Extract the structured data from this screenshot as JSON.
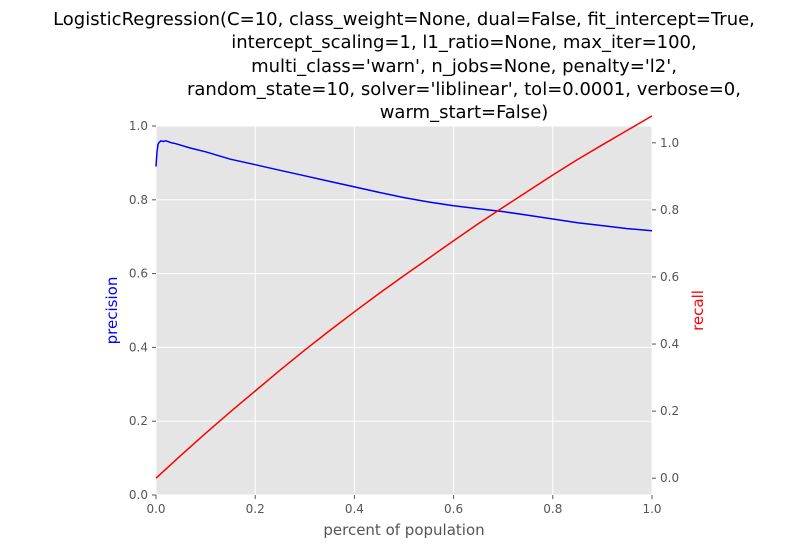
{
  "chart_data": {
    "type": "line",
    "title_lines": [
      "LogisticRegression(C=10, class_weight=None, dual=False, fit_intercept=True,",
      "intercept_scaling=1, l1_ratio=None, max_iter=100,",
      "multi_class='warn', n_jobs=None, penalty='l2',",
      "random_state=10, solver='liblinear', tol=0.0001, verbose=0,",
      "warm_start=False)"
    ],
    "xlabel": "percent of population",
    "ylabel_left": "precision",
    "ylabel_right": "recall",
    "xlim": [
      0,
      1
    ],
    "ylim_left": [
      0,
      1
    ],
    "ylim_right": [
      -0.05,
      1.05
    ],
    "x_ticks": [
      "0.0",
      "0.2",
      "0.4",
      "0.6",
      "0.8",
      "1.0"
    ],
    "y_left_ticks": [
      "0.0",
      "0.2",
      "0.4",
      "0.6",
      "0.8",
      "1.0"
    ],
    "y_right_ticks": [
      "0.0",
      "0.2",
      "0.4",
      "0.6",
      "0.8",
      "1.0"
    ],
    "grid": true,
    "colors": {
      "precision": "#0000ff",
      "recall": "#ff0000",
      "plot_background": "#e5e5e5",
      "grid": "#ffffff",
      "left_label": "#0000ff",
      "right_label": "#ff0000"
    },
    "series": [
      {
        "axis": "left",
        "color": "#0000ff",
        "x": [
          0,
          0.002,
          0.004,
          0.006,
          0.01,
          0.015,
          0.02,
          0.03,
          0.04,
          0.05,
          0.07,
          0.1,
          0.15,
          0.2,
          0.25,
          0.3,
          0.35,
          0.4,
          0.45,
          0.5,
          0.55,
          0.6,
          0.65,
          0.7,
          0.75,
          0.8,
          0.85,
          0.9,
          0.95,
          1.0
        ],
        "y": [
          0.89,
          0.93,
          0.95,
          0.955,
          0.96,
          0.958,
          0.96,
          0.955,
          0.952,
          0.948,
          0.94,
          0.93,
          0.91,
          0.895,
          0.88,
          0.865,
          0.85,
          0.835,
          0.82,
          0.806,
          0.794,
          0.784,
          0.776,
          0.768,
          0.758,
          0.748,
          0.738,
          0.73,
          0.722,
          0.716
        ]
      },
      {
        "axis": "right",
        "color": "#ff0000",
        "x": [
          0,
          0.05,
          0.1,
          0.15,
          0.2,
          0.25,
          0.3,
          0.35,
          0.4,
          0.45,
          0.5,
          0.55,
          0.6,
          0.65,
          0.7,
          0.75,
          0.8,
          0.85,
          0.9,
          0.95,
          1.0
        ],
        "y": [
          0.0,
          0.068,
          0.134,
          0.198,
          0.26,
          0.322,
          0.382,
          0.44,
          0.496,
          0.551,
          0.604,
          0.656,
          0.708,
          0.759,
          0.808,
          0.856,
          0.904,
          0.95,
          0.994,
          1.037,
          1.08
        ]
      }
    ]
  }
}
